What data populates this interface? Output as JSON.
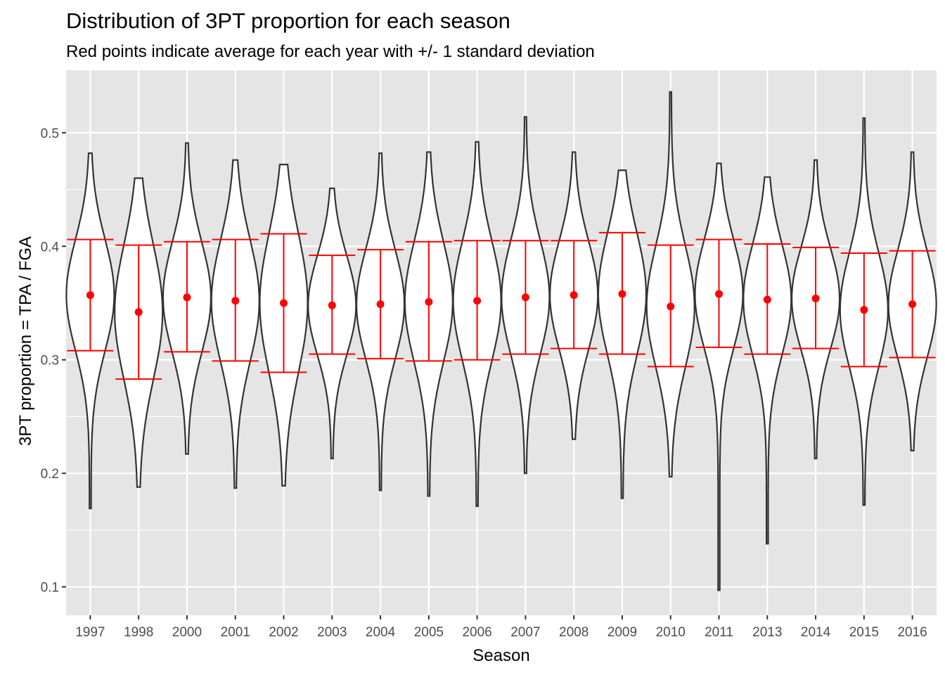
{
  "chart_data": {
    "type": "violin",
    "title": "Distribution of 3PT proportion for each season",
    "subtitle": "Red points indicate average for each year with +/- 1 standard deviation",
    "xlabel": "Season",
    "ylabel": "3PT proportion = TPA / FGA",
    "ylim": [
      0.075,
      0.555
    ],
    "y_ticks": [
      "0.1",
      "0.2",
      "0.3",
      "0.4",
      "0.5"
    ],
    "grid": true,
    "colors": {
      "panel_bg": "#e5e5e5",
      "grid": "#ffffff",
      "violin_fill": "#ffffff",
      "violin_line": "#333333",
      "stat": "#ff0000"
    },
    "categories": [
      "1997",
      "1998",
      "2000",
      "2001",
      "2002",
      "2003",
      "2004",
      "2005",
      "2006",
      "2007",
      "2008",
      "2009",
      "2010",
      "2011",
      "2013",
      "2014",
      "2015",
      "2016"
    ],
    "seasons": [
      {
        "season": "1997",
        "mean": 0.357,
        "lower": 0.308,
        "upper": 0.406,
        "min": 0.169,
        "max": 0.482
      },
      {
        "season": "1998",
        "mean": 0.342,
        "lower": 0.283,
        "upper": 0.401,
        "min": 0.188,
        "max": 0.46
      },
      {
        "season": "2000",
        "mean": 0.355,
        "lower": 0.307,
        "upper": 0.404,
        "min": 0.217,
        "max": 0.491
      },
      {
        "season": "2001",
        "mean": 0.352,
        "lower": 0.299,
        "upper": 0.406,
        "min": 0.187,
        "max": 0.476
      },
      {
        "season": "2002",
        "mean": 0.35,
        "lower": 0.289,
        "upper": 0.411,
        "min": 0.189,
        "max": 0.472
      },
      {
        "season": "2003",
        "mean": 0.348,
        "lower": 0.305,
        "upper": 0.392,
        "min": 0.213,
        "max": 0.451
      },
      {
        "season": "2004",
        "mean": 0.349,
        "lower": 0.301,
        "upper": 0.397,
        "min": 0.185,
        "max": 0.482
      },
      {
        "season": "2005",
        "mean": 0.351,
        "lower": 0.299,
        "upper": 0.404,
        "min": 0.18,
        "max": 0.483
      },
      {
        "season": "2006",
        "mean": 0.352,
        "lower": 0.3,
        "upper": 0.405,
        "min": 0.171,
        "max": 0.492
      },
      {
        "season": "2007",
        "mean": 0.355,
        "lower": 0.305,
        "upper": 0.405,
        "min": 0.2,
        "max": 0.514
      },
      {
        "season": "2008",
        "mean": 0.357,
        "lower": 0.31,
        "upper": 0.405,
        "min": 0.23,
        "max": 0.483
      },
      {
        "season": "2009",
        "mean": 0.358,
        "lower": 0.305,
        "upper": 0.412,
        "min": 0.178,
        "max": 0.467
      },
      {
        "season": "2010",
        "mean": 0.347,
        "lower": 0.294,
        "upper": 0.401,
        "min": 0.197,
        "max": 0.536
      },
      {
        "season": "2011",
        "mean": 0.358,
        "lower": 0.311,
        "upper": 0.406,
        "min": 0.097,
        "max": 0.473
      },
      {
        "season": "2013",
        "mean": 0.353,
        "lower": 0.305,
        "upper": 0.402,
        "min": 0.138,
        "max": 0.461
      },
      {
        "season": "2014",
        "mean": 0.354,
        "lower": 0.31,
        "upper": 0.399,
        "min": 0.213,
        "max": 0.476
      },
      {
        "season": "2015",
        "mean": 0.344,
        "lower": 0.294,
        "upper": 0.394,
        "min": 0.172,
        "max": 0.513
      },
      {
        "season": "2016",
        "mean": 0.349,
        "lower": 0.302,
        "upper": 0.396,
        "min": 0.22,
        "max": 0.483
      }
    ]
  }
}
